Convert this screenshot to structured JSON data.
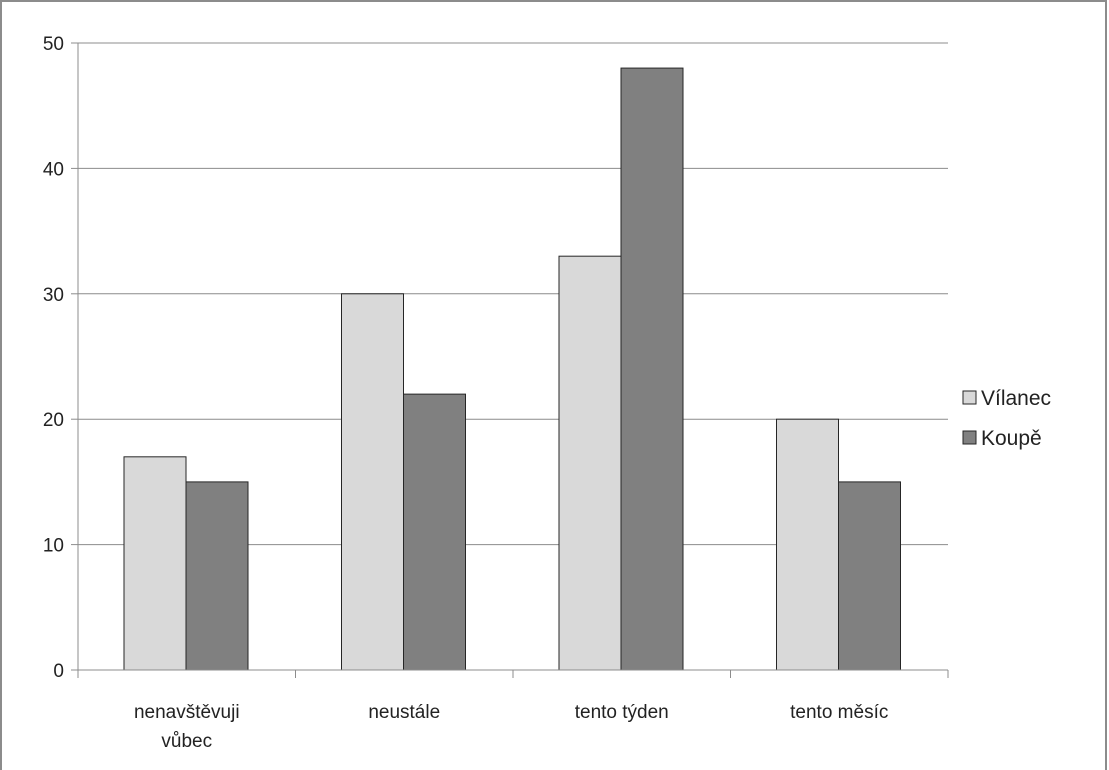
{
  "chart_data": {
    "type": "bar",
    "categories": [
      "nenavštěvuji vůbec",
      "neustále",
      "tento týden",
      "tento měsíc"
    ],
    "category_lines": [
      [
        "nenavštěvuji",
        "vůbec"
      ],
      [
        "neustále"
      ],
      [
        "tento týden"
      ],
      [
        "tento měsíc"
      ]
    ],
    "series": [
      {
        "name": "Vílanec",
        "values": [
          17,
          30,
          33,
          20
        ],
        "color": "#d9d9d9"
      },
      {
        "name": "Koupě",
        "values": [
          15,
          22,
          48,
          15
        ],
        "color": "#808080"
      }
    ],
    "ylim": [
      0,
      50
    ],
    "yticks": [
      0,
      10,
      20,
      30,
      40,
      50
    ],
    "grid": true,
    "legend": "right",
    "title": "",
    "xlabel": "",
    "ylabel": ""
  }
}
